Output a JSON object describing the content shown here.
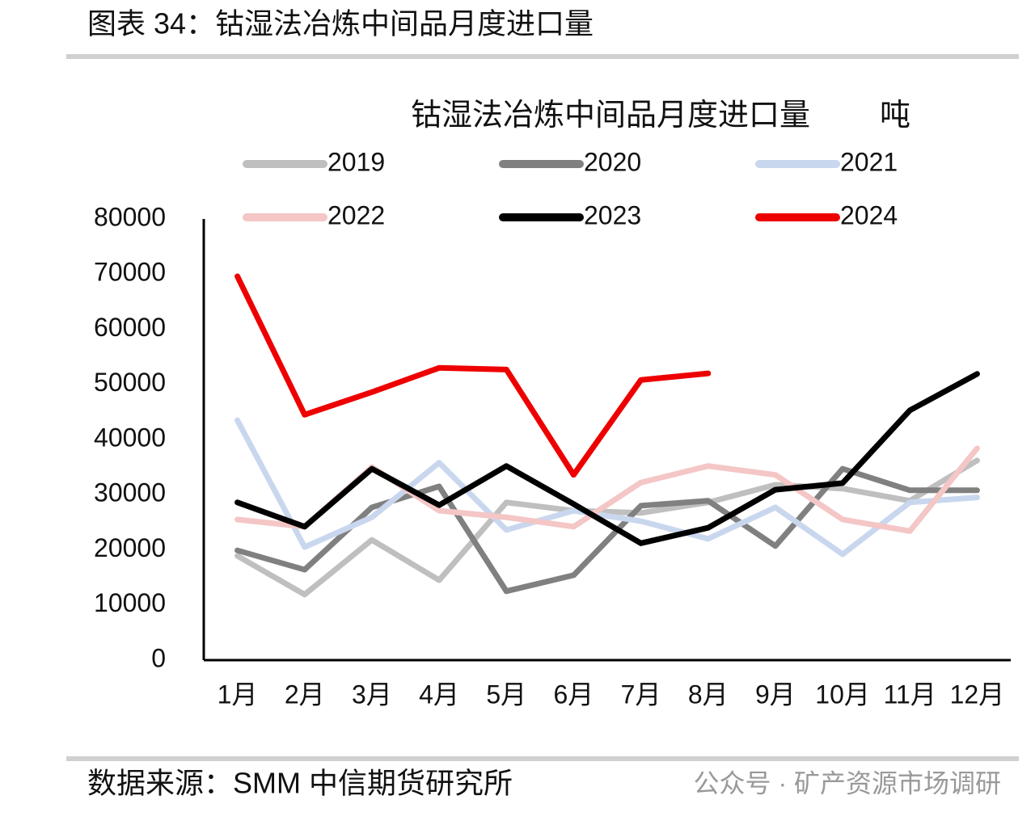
{
  "chart_data": {
    "type": "line",
    "header": "图表 34：钴湿法冶炼中间品月度进口量",
    "title": "钴湿法冶炼中间品月度进口量",
    "unit": "吨",
    "source": "数据来源：SMM 中信期货研究所",
    "watermark": "公众号 · 矿产资源市场调研",
    "categories": [
      "1月",
      "2月",
      "3月",
      "4月",
      "5月",
      "6月",
      "7月",
      "8月",
      "9月",
      "10月",
      "11月",
      "12月"
    ],
    "ylim": [
      0,
      80000
    ],
    "yticks": [
      0,
      10000,
      20000,
      30000,
      40000,
      50000,
      60000,
      70000,
      80000
    ],
    "grid": false,
    "legend": "top",
    "series": [
      {
        "name": "2019",
        "color": "#bfbfbf",
        "values": [
          18900,
          11900,
          21800,
          14500,
          28600,
          27100,
          26700,
          28600,
          31800,
          31100,
          28900,
          36200
        ]
      },
      {
        "name": "2020",
        "color": "#808080",
        "values": [
          19900,
          16400,
          27700,
          31500,
          12500,
          15400,
          28000,
          28900,
          20700,
          34700,
          30800,
          30800
        ]
      },
      {
        "name": "2021",
        "color": "#c9d7ee",
        "values": [
          43500,
          20500,
          25900,
          35800,
          23600,
          27100,
          25200,
          22000,
          27700,
          19200,
          28600,
          29500
        ]
      },
      {
        "name": "2022",
        "color": "#f4c6c6",
        "values": [
          25500,
          24200,
          35000,
          27100,
          25900,
          24200,
          32200,
          35200,
          33600,
          25500,
          23400,
          38400
        ]
      },
      {
        "name": "2023",
        "color": "#000000",
        "values": [
          28600,
          24200,
          34700,
          28100,
          35200,
          28300,
          21200,
          24000,
          30900,
          32100,
          45300,
          51900
        ]
      },
      {
        "name": "2024",
        "color": "#ee0000",
        "values": [
          69600,
          44500,
          48600,
          53000,
          52700,
          33600,
          50800,
          52000,
          null,
          null,
          null,
          null
        ]
      }
    ]
  }
}
